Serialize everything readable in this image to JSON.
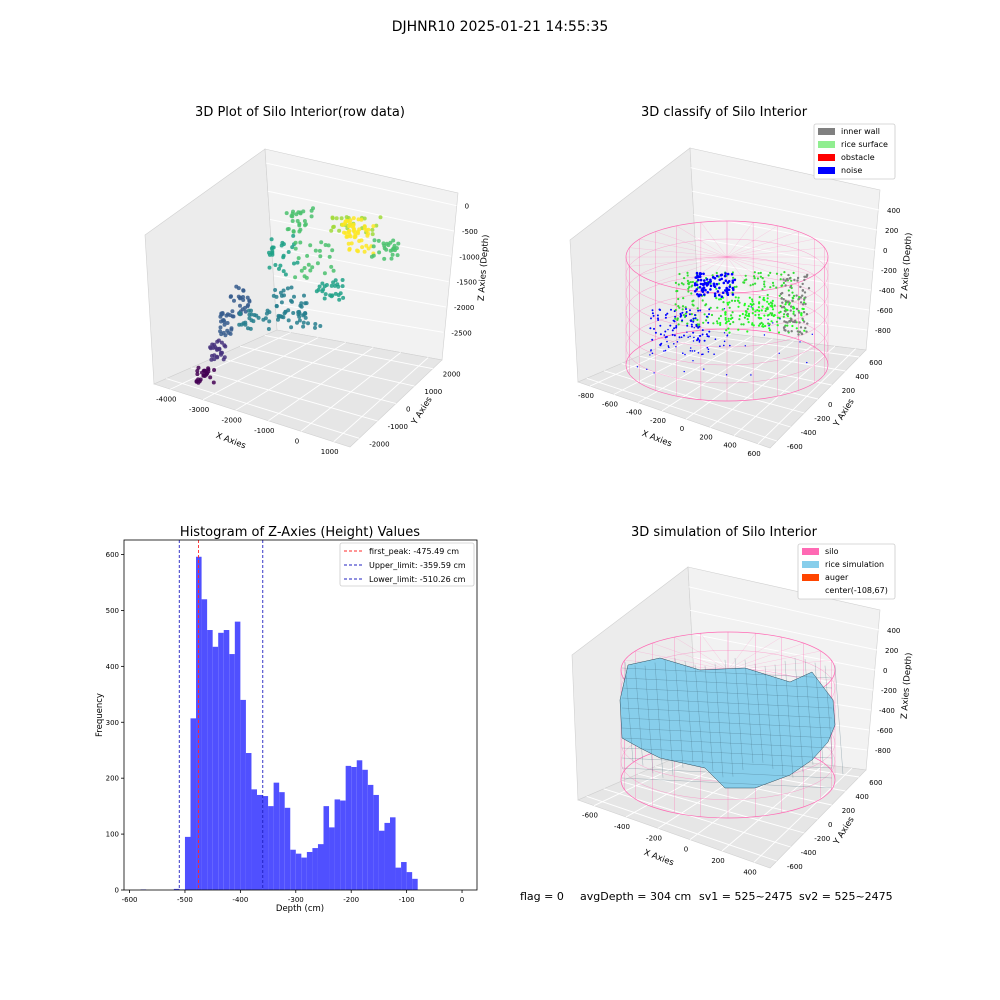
{
  "figure_title": "DJHNR10 2025-01-21 14:55:35",
  "footer": {
    "flag": "flag = 0",
    "avg_depth": "avgDepth = 304 cm",
    "sv1": "sv1 = 525~2475",
    "sv2": "sv2 = 525~2475"
  },
  "colors": {
    "hist_bar": "#5050ff",
    "first_peak": "#ff2b2b",
    "limit": "#2020c0",
    "inner_wall": "#808080",
    "rice_surface": "#90ee90",
    "obstacle": "#ff0000",
    "noise": "#0000ff",
    "silo": "#ff69b4",
    "rice_simulation": "#87ceeb",
    "auger": "#ff4500"
  },
  "chart_data": [
    {
      "type": "scatter",
      "subtype": "3d",
      "title": "3D Plot of Silo Interior(row data)",
      "xlabel": "X Axies",
      "ylabel": "Y Axies",
      "zlabel": "Z Axies (Depth)",
      "x_ticks": [
        "-4000",
        "-3000",
        "-2000",
        "-1000",
        "0",
        "1000"
      ],
      "y_ticks": [
        "-2000",
        "-1000",
        "0",
        "1000",
        "2000"
      ],
      "z_ticks": [
        "0",
        "-500",
        "-1000",
        "-1500",
        "-2000",
        "-2500"
      ],
      "xlim": [
        -4300,
        1500
      ],
      "ylim": [
        -2500,
        2500
      ],
      "zlim": [
        -2900,
        200
      ],
      "colormap": "viridis by depth",
      "grid": true
    },
    {
      "type": "scatter",
      "subtype": "3d",
      "title": "3D classify of Silo Interior",
      "xlabel": "X Axies",
      "ylabel": "Y Axies",
      "zlabel": "Z Axies (Depth)",
      "x_ticks": [
        "-800",
        "-600",
        "-400",
        "-200",
        "0",
        "200",
        "400",
        "600"
      ],
      "y_ticks": [
        "-600",
        "-400",
        "-200",
        "0",
        "200",
        "400",
        "600"
      ],
      "z_ticks": [
        "400",
        "200",
        "0",
        "-200",
        "-400",
        "-600",
        "-800"
      ],
      "legend": [
        "inner wall",
        "rice surface",
        "obstacle",
        "noise"
      ],
      "legend_position": "top-right",
      "grid": true
    },
    {
      "type": "bar",
      "subtype": "histogram",
      "title": "Histogram of Z-Axies (Height) Values",
      "xlabel": "Depth (cm)",
      "ylabel": "Frequency",
      "x_ticks": [
        "-600",
        "-500",
        "-400",
        "-300",
        "-200",
        "-100",
        "0"
      ],
      "y_ticks": [
        "0",
        "100",
        "200",
        "300",
        "400",
        "500",
        "600"
      ],
      "xlim": [
        -610,
        27
      ],
      "ylim": [
        0,
        626
      ],
      "bin_width": 10,
      "bins": [
        [
          -580,
          1
        ],
        [
          -520,
          2
        ],
        [
          -510,
          1
        ],
        [
          -500,
          95
        ],
        [
          -490,
          307
        ],
        [
          -480,
          596
        ],
        [
          -470,
          520
        ],
        [
          -460,
          465
        ],
        [
          -450,
          435
        ],
        [
          -440,
          460
        ],
        [
          -430,
          465
        ],
        [
          -420,
          422
        ],
        [
          -410,
          480
        ],
        [
          -400,
          340
        ],
        [
          -390,
          245
        ],
        [
          -380,
          180
        ],
        [
          -370,
          170
        ],
        [
          -360,
          168
        ],
        [
          -350,
          150
        ],
        [
          -340,
          192
        ],
        [
          -330,
          175
        ],
        [
          -320,
          147
        ],
        [
          -310,
          72
        ],
        [
          -300,
          65
        ],
        [
          -290,
          58
        ],
        [
          -280,
          68
        ],
        [
          -270,
          75
        ],
        [
          -260,
          82
        ],
        [
          -250,
          150
        ],
        [
          -240,
          112
        ],
        [
          -230,
          162
        ],
        [
          -220,
          160
        ],
        [
          -210,
          222
        ],
        [
          -200,
          220
        ],
        [
          -190,
          232
        ],
        [
          -180,
          215
        ],
        [
          -170,
          188
        ],
        [
          -160,
          170
        ],
        [
          -150,
          106
        ],
        [
          -140,
          120
        ],
        [
          -130,
          130
        ],
        [
          -120,
          40
        ],
        [
          -110,
          50
        ],
        [
          -100,
          32
        ],
        [
          -90,
          20
        ]
      ],
      "lines": [
        {
          "label": "first_peak: -475.49 cm",
          "x": -475.49,
          "color_key": "first_peak"
        },
        {
          "label": "Upper_limit: -359.59 cm",
          "x": -359.59,
          "color_key": "limit"
        },
        {
          "label": "Lower_limit: -510.26 cm",
          "x": -510.26,
          "color_key": "limit"
        }
      ],
      "legend_position": "top-right",
      "grid": false
    },
    {
      "type": "surface",
      "subtype": "3d",
      "title": "3D simulation of Silo Interior",
      "xlabel": "X Axies",
      "ylabel": "Y Axies",
      "zlabel": "Z Axies (Depth)",
      "x_ticks": [
        "-600",
        "-400",
        "-200",
        "0",
        "200",
        "400"
      ],
      "y_ticks": [
        "-600",
        "-400",
        "-200",
        "0",
        "200",
        "400",
        "600"
      ],
      "z_ticks": [
        "400",
        "200",
        "0",
        "-200",
        "-400",
        "-600",
        "-800"
      ],
      "legend": [
        "silo",
        "rice simulation",
        "auger",
        "center(-108,67)"
      ],
      "legend_position": "top-right",
      "grid": true
    }
  ]
}
